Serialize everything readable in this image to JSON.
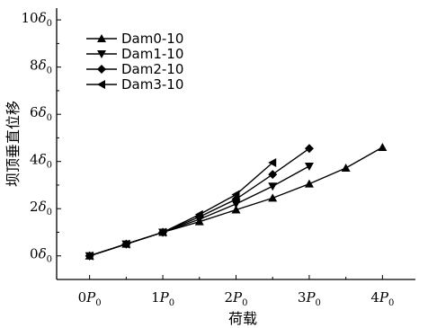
{
  "chart_data": {
    "type": "line",
    "xlabel": "荷载",
    "ylabel": "坝顶垂直位移",
    "xlim": [
      -0.45,
      4.45
    ],
    "ylim": [
      -1.0,
      10.5
    ],
    "x_ticks": [
      {
        "value": 0,
        "coef": "0",
        "sym": "P",
        "sub": "0"
      },
      {
        "value": 1,
        "coef": "1",
        "sym": "P",
        "sub": "0"
      },
      {
        "value": 2,
        "coef": "2",
        "sym": "P",
        "sub": "0"
      },
      {
        "value": 3,
        "coef": "3",
        "sym": "P",
        "sub": "0"
      },
      {
        "value": 4,
        "coef": "4",
        "sym": "P",
        "sub": "0"
      }
    ],
    "y_ticks": [
      {
        "value": 0,
        "coef": "0",
        "sym": "δ",
        "sub": "0"
      },
      {
        "value": 2,
        "coef": "2",
        "sym": "δ",
        "sub": "0"
      },
      {
        "value": 4,
        "coef": "4",
        "sym": "δ",
        "sub": "0"
      },
      {
        "value": 6,
        "coef": "6",
        "sym": "δ",
        "sub": "0"
      },
      {
        "value": 8,
        "coef": "8",
        "sym": "δ",
        "sub": "0"
      },
      {
        "value": 10,
        "coef": "10",
        "sym": "δ",
        "sub": "0"
      }
    ],
    "series": [
      {
        "name": "Dam0-10",
        "marker": "triangle-up",
        "x": [
          0,
          0.5,
          1.0,
          1.5,
          2.0,
          2.5,
          3.0,
          3.5,
          4.0
        ],
        "y": [
          0,
          0.5,
          1.0,
          1.45,
          1.95,
          2.45,
          3.05,
          3.72,
          4.6
        ]
      },
      {
        "name": "Dam1-10",
        "marker": "triangle-down",
        "x": [
          0,
          0.5,
          1.0,
          1.5,
          2.0,
          2.5,
          3.0
        ],
        "y": [
          0,
          0.5,
          1.0,
          1.55,
          2.2,
          2.95,
          3.8
        ]
      },
      {
        "name": "Dam2-10",
        "marker": "diamond",
        "x": [
          0,
          0.5,
          1.0,
          1.5,
          2.0,
          2.5,
          3.0
        ],
        "y": [
          0,
          0.5,
          1.0,
          1.65,
          2.4,
          3.45,
          4.55
        ]
      },
      {
        "name": "Dam3-10",
        "marker": "triangle-left",
        "x": [
          0,
          0.5,
          1.0,
          1.5,
          2.0,
          2.5
        ],
        "y": [
          0,
          0.5,
          1.0,
          1.75,
          2.6,
          3.95
        ]
      }
    ],
    "legend_position": "top-left",
    "grid": false
  }
}
